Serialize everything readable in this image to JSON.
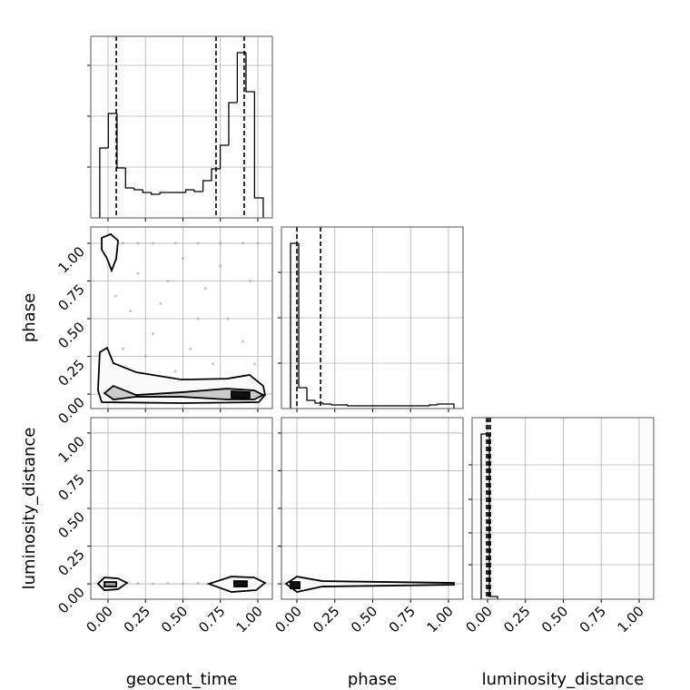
{
  "chart_data": [
    {
      "type": "histogram",
      "xlim": [
        -0.115,
        1.097
      ],
      "ylim": [
        0,
        200
      ],
      "xticks": [
        {
          "value": 0,
          "label": "0.00"
        },
        {
          "value": 0.25,
          "label": "0.25"
        },
        {
          "value": 0.5,
          "label": "0.50"
        },
        {
          "value": 0.75,
          "label": "0.75"
        },
        {
          "value": 1,
          "label": "1.00"
        }
      ],
      "yticks": [
        56,
        112,
        168
      ],
      "show_xtick_labels": false,
      "show_ytick_labels": false,
      "grid": true,
      "color": "#000000",
      "bins": [
        -0.055,
        0.002,
        0.06,
        0.117,
        0.175,
        0.232,
        0.289,
        0.347,
        0.404,
        0.462,
        0.519,
        0.576,
        0.634,
        0.691,
        0.749,
        0.806,
        0.863,
        0.921,
        0.978,
        1.036
      ],
      "counts": [
        77,
        115,
        55,
        33,
        31,
        28,
        26,
        28,
        28,
        28,
        31,
        29,
        41,
        54,
        80,
        127,
        182,
        139,
        22
      ],
      "quantiles": [
        0.055,
        0.721,
        0.909
      ]
    },
    {
      "type": "scatter",
      "xlim": [
        -0.115,
        1.097
      ],
      "ylim": [
        -0.096,
        1.108
      ],
      "xticks": [
        {
          "value": 0,
          "label": "0.00"
        },
        {
          "value": 0.25,
          "label": "0.25"
        },
        {
          "value": 0.5,
          "label": "0.50"
        },
        {
          "value": 0.75,
          "label": "0.75"
        },
        {
          "value": 1,
          "label": "1.00"
        }
      ],
      "yticks": [
        {
          "value": 0,
          "label": "0.00"
        },
        {
          "value": 0.25,
          "label": "0.25"
        },
        {
          "value": 0.5,
          "label": "0.50"
        },
        {
          "value": 0.75,
          "label": "0.75"
        },
        {
          "value": 1,
          "label": "1.00"
        }
      ],
      "ylabel": "phase",
      "show_xtick_labels": false,
      "show_ytick_labels": true,
      "grid": true,
      "point_color": "#9a9a9a",
      "points": {
        "x": [
          0.1,
          0.2,
          0.3,
          0.45,
          0.6,
          0.75,
          0.9,
          1.0,
          0.2,
          0.35,
          0.5,
          0.65,
          0.8,
          0.9,
          0.3,
          0.55,
          0.7,
          0.15,
          0.45,
          0.85,
          0.05,
          0.95,
          0.25,
          0.6,
          0.4,
          0.75,
          0.98,
          0.1
        ],
        "y": [
          1.0,
          1.0,
          1.0,
          1.0,
          1.0,
          1.0,
          1.0,
          1.0,
          0.8,
          0.6,
          0.9,
          0.7,
          0.5,
          0.35,
          0.4,
          0.3,
          0.2,
          0.55,
          0.15,
          0.1,
          0.65,
          0.75,
          0.25,
          0.5,
          0.75,
          0.85,
          0.2,
          0.3
        ]
      },
      "contours": [
        {
          "fill": "#fafafa",
          "x": [
            -0.042,
            0.018,
            0.067,
            0.055,
            0.024,
            -0.006,
            -0.042
          ],
          "y": [
            1.036,
            1.06,
            1.018,
            0.898,
            0.819,
            0.898,
            0.958
          ]
        },
        {
          "fill": "#fafafa",
          "x": [
            -0.055,
            -0.006,
            0.036,
            0.188,
            0.491,
            0.794,
            0.945,
            1.036,
            1.048,
            1.006,
            0.491,
            -0.042,
            -0.067
          ],
          "y": [
            0.277,
            0.307,
            0.205,
            0.145,
            0.096,
            0.102,
            0.127,
            0.054,
            -0.006,
            -0.054,
            -0.06,
            -0.054,
            0.024
          ]
        },
        {
          "fill": "#cccccc",
          "x": [
            -0.024,
            0.036,
            0.188,
            0.491,
            0.794,
            0.976,
            1.036,
            0.976,
            0.794,
            0.491,
            0.188,
            0.036
          ],
          "y": [
            0.006,
            0.054,
            -0.006,
            0.012,
            0.036,
            0.024,
            -0.006,
            -0.036,
            -0.036,
            -0.018,
            -0.018,
            -0.036
          ]
        },
        {
          "fill": "#111111",
          "x": [
            0.824,
            0.945,
            0.945,
            0.824
          ],
          "y": [
            0.018,
            0.012,
            -0.024,
            -0.024
          ]
        }
      ]
    },
    {
      "type": "histogram",
      "xlim": [
        -0.102,
        1.096
      ],
      "ylim": [
        0,
        200
      ],
      "xticks": [
        {
          "value": 0,
          "label": "0.00"
        },
        {
          "value": 0.25,
          "label": "0.25"
        },
        {
          "value": 0.5,
          "label": "0.50"
        },
        {
          "value": 0.75,
          "label": "0.75"
        },
        {
          "value": 1,
          "label": "1.00"
        }
      ],
      "yticks": [
        50,
        100,
        150
      ],
      "show_xtick_labels": false,
      "show_ytick_labels": false,
      "grid": true,
      "color": "#000000",
      "bins": [
        -0.042,
        0.012,
        0.066,
        0.12,
        0.174,
        0.228,
        0.281,
        0.335,
        0.389,
        0.443,
        0.497,
        0.551,
        0.605,
        0.659,
        0.713,
        0.767,
        0.82,
        0.874,
        0.928,
        0.982,
        1.036
      ],
      "counts": [
        182,
        23,
        9,
        6,
        5,
        4,
        4,
        3,
        3,
        3,
        3,
        3,
        3,
        3,
        3,
        3,
        3,
        4,
        5,
        5
      ],
      "quantiles": [
        0.0,
        0.156
      ]
    },
    {
      "type": "scatter",
      "xlim": [
        -0.115,
        1.097
      ],
      "ylim": [
        -0.102,
        1.102
      ],
      "xticks": [
        {
          "value": 0,
          "label": "0.00"
        },
        {
          "value": 0.25,
          "label": "0.25"
        },
        {
          "value": 0.5,
          "label": "0.50"
        },
        {
          "value": 0.75,
          "label": "0.75"
        },
        {
          "value": 1,
          "label": "1.00"
        }
      ],
      "yticks": [
        {
          "value": 0,
          "label": "0.00"
        },
        {
          "value": 0.25,
          "label": "0.25"
        },
        {
          "value": 0.5,
          "label": "0.50"
        },
        {
          "value": 0.75,
          "label": "0.75"
        },
        {
          "value": 1,
          "label": "1.00"
        }
      ],
      "xlabel": "geocent_time",
      "ylabel": "luminosity_distance",
      "show_xtick_labels": true,
      "show_ytick_labels": true,
      "grid": true,
      "point_color": "#9a9a9a",
      "points": {
        "x": [
          0.0,
          0.05,
          0.1,
          0.2,
          0.3,
          0.4,
          0.5,
          0.6,
          0.7,
          0.8,
          0.9,
          1.0
        ],
        "y": [
          0.0,
          0.005,
          0.0,
          0.004,
          0.0,
          0.003,
          0.0,
          0.004,
          0.0,
          0.005,
          0.0,
          0.003
        ]
      },
      "contours": [
        {
          "fill": "#fafafa",
          "x": [
            -0.067,
            -0.024,
            0.067,
            0.127,
            0.067,
            -0.024
          ],
          "y": [
            0.0,
            0.042,
            0.036,
            0.006,
            -0.036,
            -0.042
          ]
        },
        {
          "fill": "#fafafa",
          "x": [
            0.673,
            0.824,
            0.976,
            1.048,
            0.988,
            0.824
          ],
          "y": [
            0.0,
            0.048,
            0.042,
            0.006,
            -0.042,
            -0.054
          ]
        },
        {
          "fill": "#999999",
          "x": [
            -0.024,
            0.055,
            0.055,
            -0.024
          ],
          "y": [
            0.012,
            0.012,
            -0.018,
            -0.018
          ]
        },
        {
          "fill": "#111111",
          "x": [
            0.842,
            0.927,
            0.927,
            0.842
          ],
          "y": [
            0.018,
            0.018,
            -0.018,
            -0.018
          ]
        }
      ]
    },
    {
      "type": "scatter",
      "xlim": [
        -0.102,
        1.096
      ],
      "ylim": [
        -0.102,
        1.102
      ],
      "xticks": [
        {
          "value": 0,
          "label": "0.00"
        },
        {
          "value": 0.25,
          "label": "0.25"
        },
        {
          "value": 0.5,
          "label": "0.50"
        },
        {
          "value": 0.75,
          "label": "0.75"
        },
        {
          "value": 1,
          "label": "1.00"
        }
      ],
      "yticks": [
        {
          "value": 0,
          "label": "0.00"
        },
        {
          "value": 0.25,
          "label": "0.25"
        },
        {
          "value": 0.5,
          "label": "0.50"
        },
        {
          "value": 0.75,
          "label": "0.75"
        },
        {
          "value": 1,
          "label": "1.00"
        }
      ],
      "xlabel": "phase",
      "show_xtick_labels": true,
      "show_ytick_labels": false,
      "grid": true,
      "point_color": "#555555",
      "points": {
        "x": [
          0.0,
          0.1,
          0.2,
          0.3,
          0.4,
          0.5,
          0.6,
          0.7,
          0.8,
          0.9,
          1.0
        ],
        "y": [
          0.0,
          0.0,
          0.0,
          0.0,
          0.0,
          0.0,
          0.0,
          0.0,
          0.0,
          0.0,
          0.0
        ]
      },
      "contours": [
        {
          "fill": "#fafafa",
          "x": [
            -0.072,
            0.0,
            0.168,
            1.036,
            1.036,
            0.168,
            0.0
          ],
          "y": [
            0.0,
            0.048,
            0.018,
            0.006,
            -0.006,
            -0.018,
            -0.054
          ]
        },
        {
          "fill": "#111111",
          "x": [
            -0.042,
            0.018,
            0.018,
            -0.042
          ],
          "y": [
            0.012,
            0.012,
            -0.03,
            -0.03
          ]
        }
      ]
    },
    {
      "type": "histogram",
      "xlim": [
        -0.102,
        1.096
      ],
      "ylim": [
        0,
        200
      ],
      "xticks": [
        {
          "value": 0,
          "label": "0.00"
        },
        {
          "value": 0.25,
          "label": "0.25"
        },
        {
          "value": 0.5,
          "label": "0.50"
        },
        {
          "value": 0.75,
          "label": "0.75"
        },
        {
          "value": 1,
          "label": "1.00"
        }
      ],
      "yticks": [
        38,
        73,
        110,
        148
      ],
      "xlabel": "luminosity_distance",
      "show_xtick_labels": true,
      "show_ytick_labels": false,
      "grid": true,
      "color": "#000000",
      "bins": [
        -0.042,
        0.012,
        0.066
      ],
      "counts": [
        182,
        3
      ],
      "quantiles": [
        -0.006,
        0.006,
        0.018
      ]
    }
  ]
}
